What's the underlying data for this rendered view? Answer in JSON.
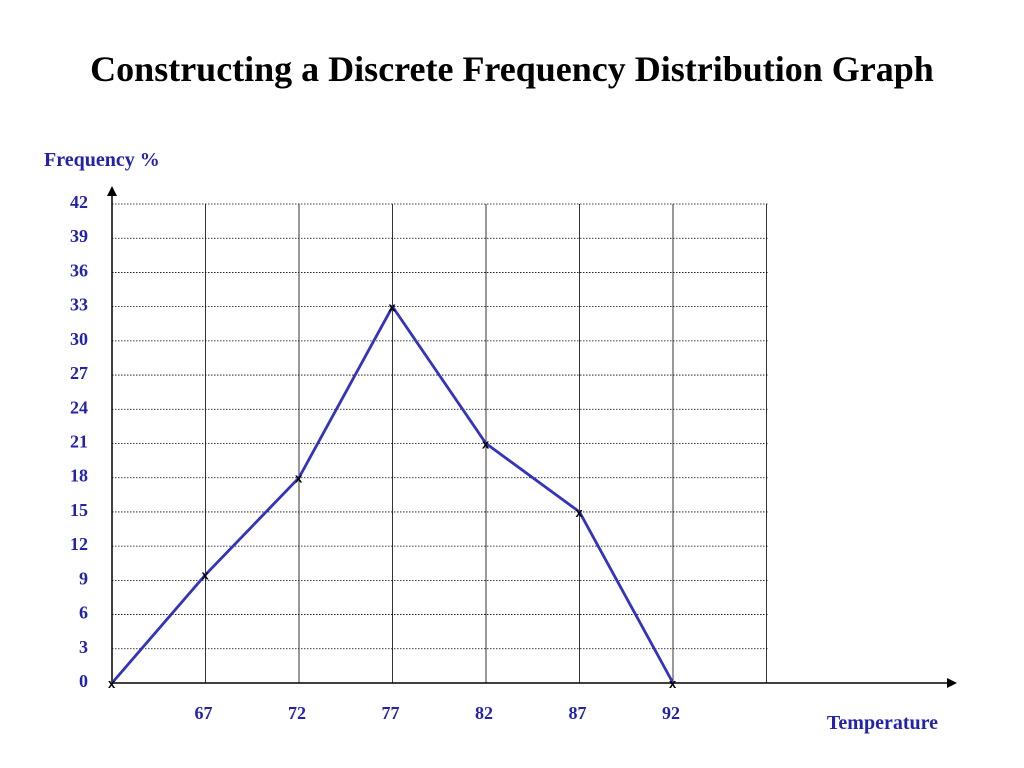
{
  "title": "Constructing a Discrete Frequency Distribution Graph",
  "colors": {
    "series": "#3333bb",
    "axis_text": "#2222aa",
    "grid": "#000000",
    "marker": "#000000"
  },
  "chart_data": {
    "type": "line",
    "title": "Constructing a Discrete Frequency Distribution Graph",
    "xlabel": "Temperature",
    "ylabel": "Frequency %",
    "x_ticks": [
      67,
      72,
      77,
      82,
      87,
      92
    ],
    "y_ticks": [
      0,
      3,
      6,
      9,
      12,
      15,
      18,
      21,
      24,
      27,
      30,
      33,
      36,
      39,
      42
    ],
    "xlim": [
      62,
      97
    ],
    "ylim": [
      0,
      42
    ],
    "grid": true,
    "grid_style": "dotted horizontal, solid vertical",
    "marker": "x",
    "series": [
      {
        "x": [
          62,
          67,
          72,
          77,
          82,
          87,
          92
        ],
        "values": [
          0,
          9.5,
          18,
          33,
          21,
          15,
          0
        ]
      }
    ]
  }
}
